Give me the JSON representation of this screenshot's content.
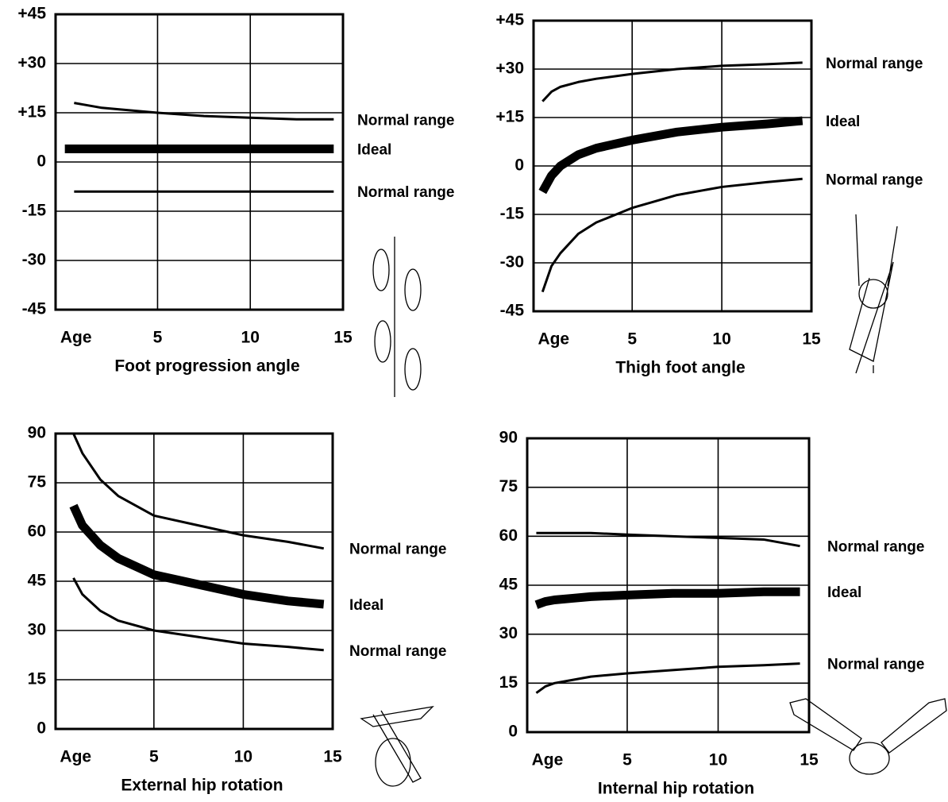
{
  "chart_data": [
    {
      "type": "line",
      "xlabel": "Foot progression angle",
      "x": [
        0,
        0.5,
        1,
        2,
        3,
        5,
        7.5,
        10,
        12.5,
        14.5
      ],
      "xlim": [
        -0.5,
        15
      ],
      "xticks": [
        {
          "value": 0,
          "label": "Age"
        },
        5,
        10,
        15
      ],
      "ylim": [
        -45,
        45
      ],
      "yticks": [
        {
          "value": 45,
          "label": "+45"
        },
        {
          "value": 30,
          "label": "+30"
        },
        {
          "value": 15,
          "label": "+15"
        },
        0,
        -15,
        -30,
        -45
      ],
      "grid": true,
      "series": [
        {
          "name": "Normal range",
          "color": "#000000",
          "values": [
            null,
            18,
            17.5,
            16.5,
            16,
            15,
            14,
            13.5,
            13,
            13
          ]
        },
        {
          "name": "Ideal",
          "color": "#000000",
          "values": [
            4,
            4,
            4,
            4,
            4,
            4,
            4,
            4,
            4,
            4
          ]
        },
        {
          "name": "Normal range",
          "color": "#000000",
          "values": [
            null,
            -9,
            -9,
            -9,
            -9,
            -9,
            -9,
            -9,
            -9,
            -9
          ]
        }
      ]
    },
    {
      "type": "line",
      "xlabel": "Thigh foot angle",
      "x": [
        0,
        0.5,
        1,
        2,
        3,
        5,
        7.5,
        10,
        12.5,
        14.5
      ],
      "xlim": [
        -0.5,
        15
      ],
      "xticks": [
        {
          "value": 0,
          "label": "Age"
        },
        5,
        10,
        15
      ],
      "ylim": [
        -45,
        45
      ],
      "yticks": [
        {
          "value": 45,
          "label": "+45"
        },
        {
          "value": 30,
          "label": "+30"
        },
        {
          "value": 15,
          "label": "+15"
        },
        0,
        -15,
        -30,
        -45
      ],
      "grid": true,
      "series": [
        {
          "name": "Normal range",
          "color": "#000000",
          "values": [
            20,
            23,
            24.5,
            26,
            27,
            28.5,
            30,
            31,
            31.5,
            32
          ]
        },
        {
          "name": "Ideal",
          "color": "#000000",
          "values": [
            -8,
            -3,
            0,
            3.5,
            5.5,
            8,
            10.5,
            12,
            13,
            14
          ]
        },
        {
          "name": "Normal range",
          "color": "#000000",
          "values": [
            -39,
            -31,
            -27,
            -21,
            -17.5,
            -13,
            -9,
            -6.5,
            -5,
            -4
          ]
        }
      ]
    },
    {
      "type": "line",
      "xlabel": "External hip rotation",
      "x": [
        0,
        0.5,
        1,
        2,
        3,
        5,
        7.5,
        10,
        12.5,
        14.5
      ],
      "xlim": [
        -0.5,
        15
      ],
      "xticks": [
        {
          "value": 0,
          "label": "Age"
        },
        5,
        10,
        15
      ],
      "ylim": [
        0,
        90
      ],
      "yticks": [
        90,
        75,
        60,
        45,
        30,
        15,
        0
      ],
      "grid": true,
      "series": [
        {
          "name": "Normal range",
          "color": "#000000",
          "values": [
            null,
            90,
            84,
            76,
            71,
            65,
            62,
            59,
            57,
            55
          ]
        },
        {
          "name": "Ideal",
          "color": "#000000",
          "values": [
            null,
            68,
            62,
            56,
            52,
            47,
            44,
            41,
            39,
            38
          ]
        },
        {
          "name": "Normal range",
          "color": "#000000",
          "values": [
            null,
            46,
            41,
            36,
            33,
            30,
            28,
            26,
            25,
            24
          ]
        }
      ]
    },
    {
      "type": "line",
      "xlabel": "Internal hip rotation",
      "x": [
        0,
        0.5,
        1,
        2,
        3,
        5,
        7.5,
        10,
        12.5,
        14.5
      ],
      "xlim": [
        -0.5,
        15
      ],
      "xticks": [
        {
          "value": 0,
          "label": "Age"
        },
        5,
        10,
        15
      ],
      "ylim": [
        0,
        90
      ],
      "yticks": [
        90,
        75,
        60,
        45,
        30,
        15,
        0
      ],
      "grid": true,
      "series": [
        {
          "name": "Normal range",
          "color": "#000000",
          "values": [
            61,
            61,
            61,
            61,
            61,
            60.5,
            60,
            59.5,
            59,
            57
          ]
        },
        {
          "name": "Ideal",
          "color": "#000000",
          "values": [
            39,
            40,
            40.5,
            41,
            41.5,
            42,
            42.5,
            42.5,
            43,
            43
          ]
        },
        {
          "name": "Normal range",
          "color": "#000000",
          "values": [
            12,
            14,
            15,
            16,
            17,
            18,
            19,
            20,
            20.5,
            21
          ]
        }
      ]
    }
  ]
}
